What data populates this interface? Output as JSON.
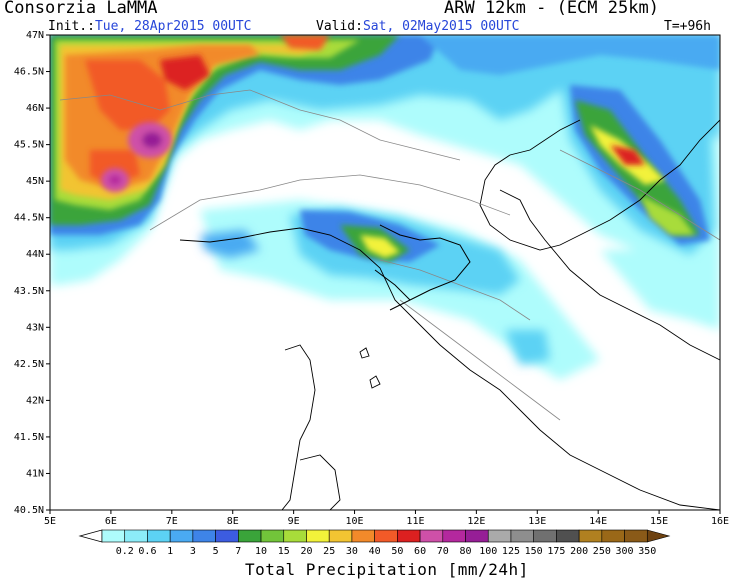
{
  "header": {
    "organization": "Consorzia LaMMA",
    "model": "ARW 12km - (ECM 25km)",
    "init_label": "Init.:",
    "init_value": "Tue, 28Apr2015 00UTC",
    "valid_label": "Valid:",
    "valid_value": "Sat, 02May2015 00UTC",
    "lead_time": "T=+96h"
  },
  "map": {
    "lon_ticks": [
      "5E",
      "6E",
      "7E",
      "8E",
      "9E",
      "10E",
      "11E",
      "12E",
      "13E",
      "14E",
      "15E",
      "16E"
    ],
    "lat_ticks": [
      "47N",
      "46.5N",
      "46N",
      "45.5N",
      "45N",
      "44.5N",
      "44N",
      "43.5N",
      "43N",
      "42.5N",
      "42N",
      "41.5N",
      "41N",
      "40.5N"
    ],
    "lon_range": [
      5,
      16
    ],
    "lat_range": [
      40.5,
      47
    ]
  },
  "colorbar": {
    "title": "Total Precipitation [mm/24h]",
    "levels": [
      "0.2",
      "0.6",
      "1",
      "3",
      "5",
      "7",
      "10",
      "15",
      "20",
      "25",
      "30",
      "40",
      "50",
      "60",
      "70",
      "80",
      "100",
      "125",
      "150",
      "175",
      "200",
      "250",
      "300",
      "350"
    ],
    "colors": [
      "#aefcfc",
      "#8cecf8",
      "#5cd2f4",
      "#4aaaf2",
      "#3e84e8",
      "#3c5ce0",
      "#3aa43a",
      "#72c43a",
      "#a8dc3a",
      "#f2f23a",
      "#f2c432",
      "#f28a2a",
      "#f25a28",
      "#dc2020",
      "#ce50a8",
      "#b4289e",
      "#961e96",
      "#aaaaaa",
      "#8e8e8e",
      "#707070",
      "#505050",
      "#b08020",
      "#9a6818",
      "#8a5a18",
      "#6e4210"
    ]
  }
}
